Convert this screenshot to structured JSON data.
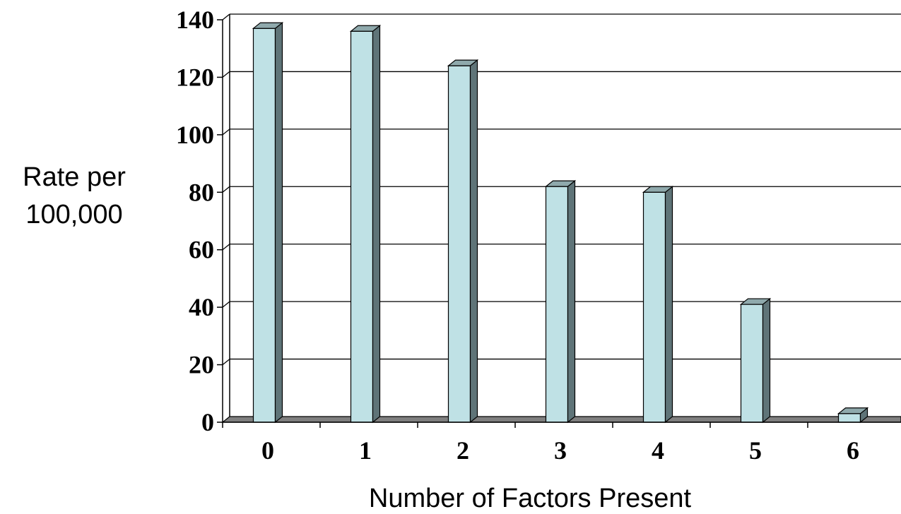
{
  "chart_data": {
    "type": "bar",
    "categories": [
      "0",
      "1",
      "2",
      "3",
      "4",
      "5",
      "6"
    ],
    "values": [
      137,
      136,
      124,
      82,
      80,
      41,
      3
    ],
    "title": "",
    "ylabel_lines": [
      "Rate per",
      "100,000"
    ],
    "xlabel": "Number of Factors Present",
    "ylim": [
      0,
      140
    ],
    "y_ticks": [
      "0",
      "20",
      "40",
      "60",
      "80",
      "100",
      "120",
      "140"
    ],
    "grid": true,
    "style": "3d-column",
    "colors": {
      "bar_front": "#bfe1e5",
      "bar_side": "#5f7478",
      "bar_top": "#8fa9ac",
      "floor": "#7f7f7f",
      "gridline": "#000000"
    }
  }
}
